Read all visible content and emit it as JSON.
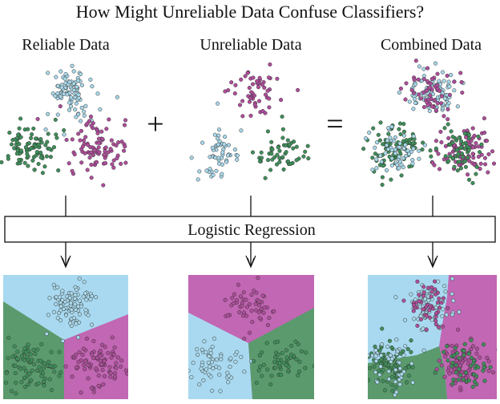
{
  "title": "How Might Unreliable Data Confuse Classifiers?",
  "panels": [
    {
      "label": "Reliable Data"
    },
    {
      "label": "Unreliable Data"
    },
    {
      "label": "Combined Data"
    }
  ],
  "operators": {
    "plus": "+",
    "equals": "="
  },
  "model_box": {
    "label": "Logistic Regression"
  },
  "colors": {
    "blue": "#a8d8ea",
    "green": "#3f8f5a",
    "purple": "#b04d9c",
    "blue_region": "#a9d9f0",
    "green_region": "#5b9a6d",
    "purple_region": "#c167b3",
    "point_stroke": "#333333"
  }
}
